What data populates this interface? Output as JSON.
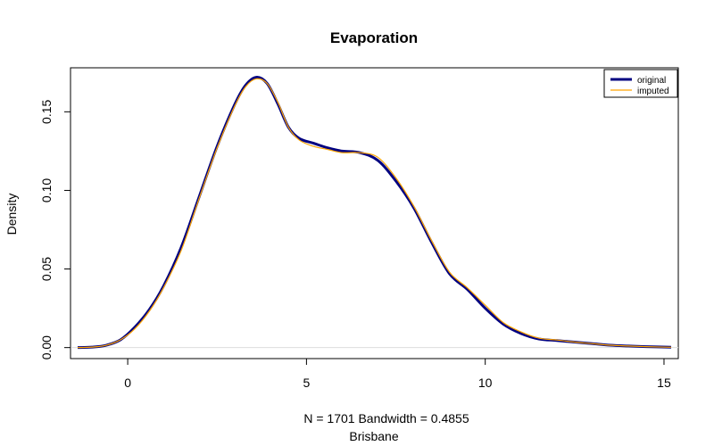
{
  "chart_data": {
    "type": "line",
    "title": "Evaporation",
    "xlabel_line1": "N = 1701   Bandwidth = 0.4855",
    "xlabel_line2": "Brisbane",
    "ylabel": "Density",
    "xlim": [
      -1.6,
      15.4
    ],
    "ylim": [
      -0.007,
      0.178
    ],
    "x_ticks": [
      0,
      5,
      10,
      15
    ],
    "y_ticks": [
      0.0,
      0.05,
      0.1,
      0.15
    ],
    "x_tick_labels": [
      "0",
      "5",
      "10",
      "15"
    ],
    "y_tick_labels": [
      "0.00",
      "0.05",
      "0.10",
      "0.15"
    ],
    "legend_position": "top-right",
    "series": [
      {
        "name": "original",
        "color": "#000080",
        "points": [
          [
            -1.4,
            0.0
          ],
          [
            -1.0,
            0.0003
          ],
          [
            -0.6,
            0.0015
          ],
          [
            -0.2,
            0.005
          ],
          [
            0.2,
            0.013
          ],
          [
            0.6,
            0.024
          ],
          [
            1.0,
            0.039
          ],
          [
            1.5,
            0.064
          ],
          [
            2.0,
            0.096
          ],
          [
            2.5,
            0.128
          ],
          [
            3.0,
            0.155
          ],
          [
            3.3,
            0.167
          ],
          [
            3.6,
            0.172
          ],
          [
            3.9,
            0.168
          ],
          [
            4.2,
            0.155
          ],
          [
            4.5,
            0.14
          ],
          [
            4.8,
            0.133
          ],
          [
            5.2,
            0.13
          ],
          [
            5.6,
            0.127
          ],
          [
            6.0,
            0.125
          ],
          [
            6.5,
            0.124
          ],
          [
            7.0,
            0.119
          ],
          [
            7.5,
            0.106
          ],
          [
            8.0,
            0.089
          ],
          [
            8.5,
            0.067
          ],
          [
            9.0,
            0.047
          ],
          [
            9.5,
            0.037
          ],
          [
            10.0,
            0.025
          ],
          [
            10.5,
            0.015
          ],
          [
            11.0,
            0.009
          ],
          [
            11.5,
            0.0055
          ],
          [
            12.0,
            0.0045
          ],
          [
            12.5,
            0.0035
          ],
          [
            13.0,
            0.0025
          ],
          [
            13.5,
            0.0015
          ],
          [
            14.0,
            0.001
          ],
          [
            14.5,
            0.0006
          ],
          [
            15.2,
            0.0002
          ]
        ]
      },
      {
        "name": "imputed",
        "color": "#FFA500",
        "points": [
          [
            -1.4,
            0.0
          ],
          [
            -1.0,
            0.0003
          ],
          [
            -0.6,
            0.0015
          ],
          [
            -0.2,
            0.005
          ],
          [
            0.2,
            0.012
          ],
          [
            0.6,
            0.023
          ],
          [
            1.0,
            0.038
          ],
          [
            1.5,
            0.062
          ],
          [
            2.0,
            0.095
          ],
          [
            2.5,
            0.127
          ],
          [
            3.0,
            0.154
          ],
          [
            3.3,
            0.166
          ],
          [
            3.6,
            0.171
          ],
          [
            3.9,
            0.168
          ],
          [
            4.2,
            0.156
          ],
          [
            4.5,
            0.14
          ],
          [
            4.8,
            0.132
          ],
          [
            5.2,
            0.128
          ],
          [
            5.6,
            0.126
          ],
          [
            6.0,
            0.124
          ],
          [
            6.5,
            0.124
          ],
          [
            7.0,
            0.121
          ],
          [
            7.5,
            0.108
          ],
          [
            8.0,
            0.09
          ],
          [
            8.5,
            0.068
          ],
          [
            9.0,
            0.048
          ],
          [
            9.5,
            0.038
          ],
          [
            10.0,
            0.027
          ],
          [
            10.5,
            0.016
          ],
          [
            11.0,
            0.01
          ],
          [
            11.5,
            0.006
          ],
          [
            12.0,
            0.0048
          ],
          [
            12.5,
            0.0035
          ],
          [
            13.0,
            0.0025
          ],
          [
            13.5,
            0.0015
          ],
          [
            14.0,
            0.001
          ],
          [
            14.5,
            0.0006
          ],
          [
            15.2,
            0.0002
          ]
        ]
      }
    ]
  }
}
